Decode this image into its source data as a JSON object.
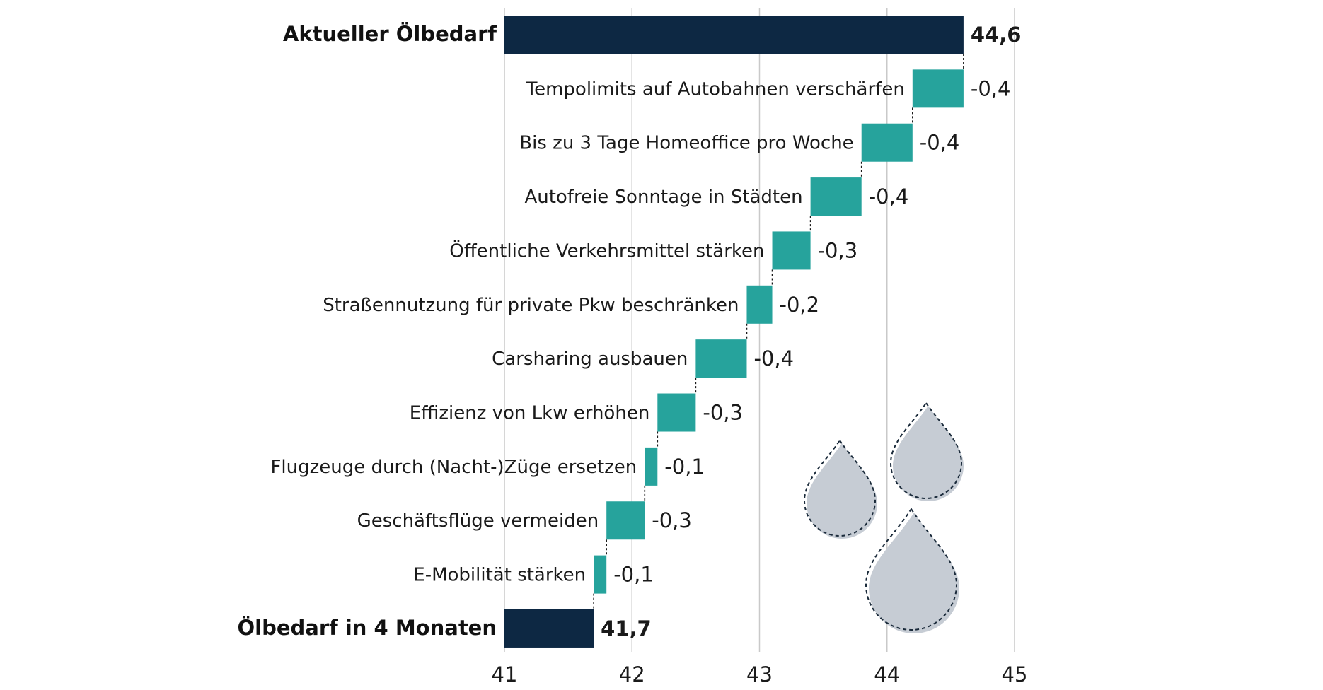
{
  "chart_data": {
    "type": "bar",
    "subtype": "waterfall",
    "orientation": "horizontal",
    "categories": [
      "Aktueller Ölbedarf",
      "Tempolimits auf Autobahnen verschärfen",
      "Bis zu 3 Tage Homeoffice pro Woche",
      "Autofreie Sonntage in Städten",
      "Öffentliche Verkehrsmittel stärken",
      "Straßennutzung für private Pkw beschränken",
      "Carsharing ausbauen",
      "Effizienz von Lkw erhöhen",
      "Flugzeuge durch (Nacht-)Züge ersetzen",
      "Geschäftsflüge vermeiden",
      "E-Mobilität stärken",
      "Ölbedarf in 4 Monaten"
    ],
    "values": [
      44.6,
      -0.4,
      -0.4,
      -0.4,
      -0.3,
      -0.2,
      -0.4,
      -0.3,
      -0.1,
      -0.3,
      -0.1,
      41.7
    ],
    "value_labels": [
      "44,6",
      "-0,4",
      "-0,4",
      "-0,4",
      "-0,3",
      "-0,2",
      "-0,4",
      "-0,3",
      "-0,1",
      "-0,3",
      "-0,1",
      "41,7"
    ],
    "bar_types": [
      "total",
      "delta",
      "delta",
      "delta",
      "delta",
      "delta",
      "delta",
      "delta",
      "delta",
      "delta",
      "delta",
      "total"
    ],
    "xlim": [
      41,
      45
    ],
    "x_ticks": [
      41,
      42,
      43,
      44,
      45
    ],
    "x_tick_labels": [
      "41",
      "42",
      "43",
      "44",
      "45"
    ],
    "grid": true,
    "connectors": "dashed",
    "colors": {
      "total": "#0d2843",
      "delta": "#26a39c",
      "grid": "#c9c9c9",
      "drop": "#c6ccd4"
    },
    "decoration": "oil-drop-icons",
    "title": "",
    "xlabel": "",
    "ylabel": ""
  }
}
